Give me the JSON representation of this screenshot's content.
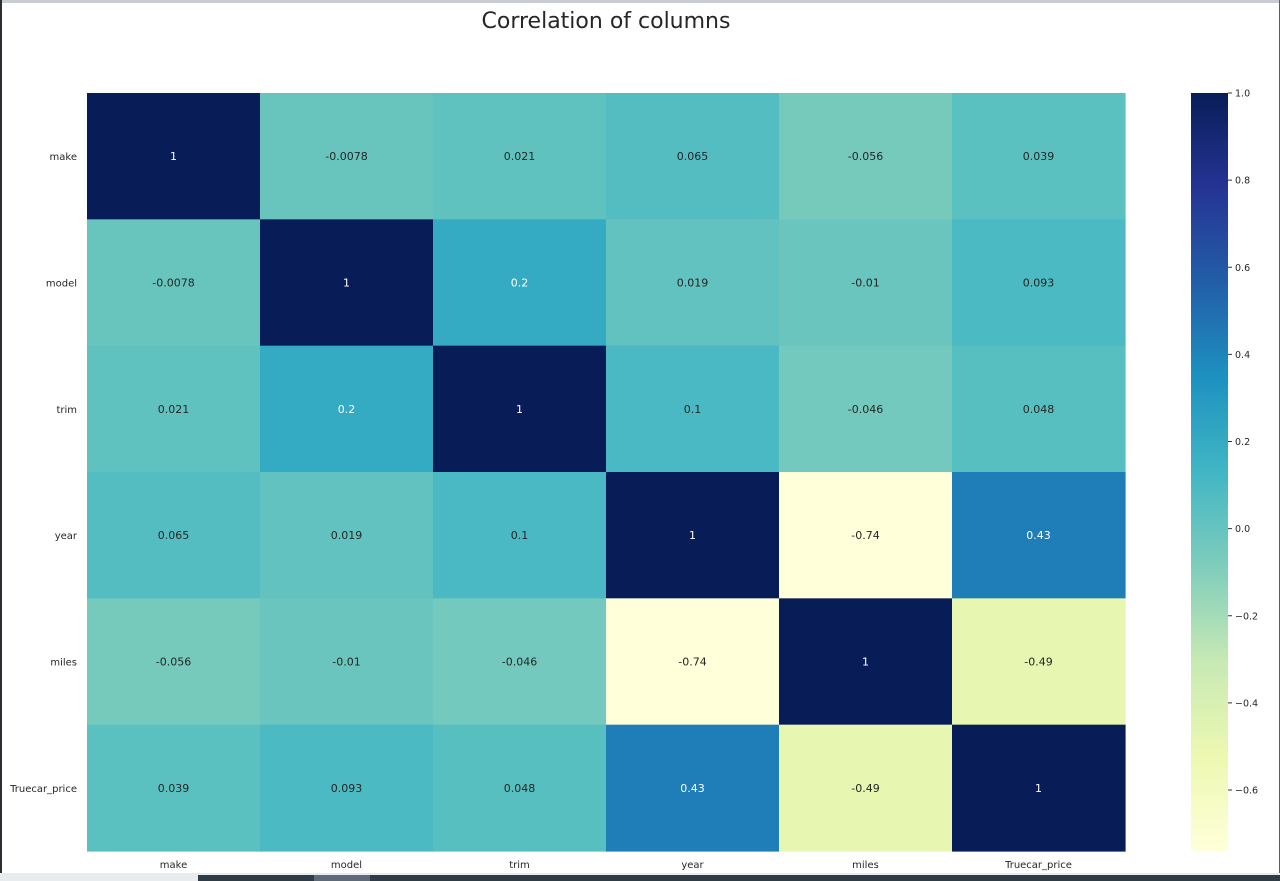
{
  "chart_data": {
    "type": "heatmap",
    "title": "Correlation of columns",
    "x_labels": [
      "make",
      "model",
      "trim",
      "year",
      "miles",
      "Truecar_price"
    ],
    "y_labels": [
      "make",
      "model",
      "trim",
      "year",
      "miles",
      "Truecar_price"
    ],
    "values": [
      [
        1,
        -0.0078,
        0.021,
        0.065,
        -0.056,
        0.039
      ],
      [
        -0.0078,
        1,
        0.2,
        0.019,
        -0.01,
        0.093
      ],
      [
        0.021,
        0.2,
        1,
        0.1,
        -0.046,
        0.048
      ],
      [
        0.065,
        0.019,
        0.1,
        1,
        -0.74,
        0.43
      ],
      [
        -0.056,
        -0.01,
        -0.046,
        -0.74,
        1,
        -0.49
      ],
      [
        0.039,
        0.093,
        0.048,
        0.43,
        -0.49,
        1
      ]
    ],
    "annotations": [
      [
        "1",
        "-0.0078",
        "0.021",
        "0.065",
        "-0.056",
        "0.039"
      ],
      [
        "-0.0078",
        "1",
        "0.2",
        "0.019",
        "-0.01",
        "0.093"
      ],
      [
        "0.021",
        "0.2",
        "1",
        "0.1",
        "-0.046",
        "0.048"
      ],
      [
        "0.065",
        "0.019",
        "0.1",
        "1",
        "-0.74",
        "0.43"
      ],
      [
        "-0.056",
        "-0.01",
        "-0.046",
        "-0.74",
        "1",
        "-0.49"
      ],
      [
        "0.039",
        "0.093",
        "0.048",
        "0.43",
        "-0.49",
        "1"
      ]
    ],
    "colormap": "YlGnBu",
    "vmin": -0.74,
    "vmax": 1,
    "colorbar": {
      "ticks": [
        1.0,
        0.8,
        0.6,
        0.4,
        0.2,
        0.0,
        -0.2,
        -0.4,
        -0.6
      ],
      "tick_labels": [
        "1.0",
        "0.8",
        "0.6",
        "0.4",
        "0.2",
        "0.0",
        "−0.2",
        "−0.4",
        "−0.6"
      ],
      "placement": "right"
    }
  }
}
